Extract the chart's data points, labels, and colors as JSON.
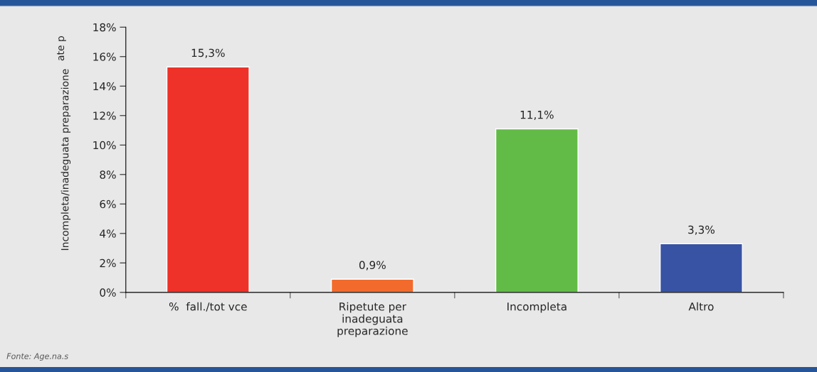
{
  "chart_data": {
    "type": "bar",
    "categories": [
      "%  fall./tot vce",
      "Ripetute per\ninadeguata\npreparazione",
      "Incompleta",
      "Altro"
    ],
    "values": [
      15.3,
      0.9,
      11.1,
      3.3
    ],
    "colors": [
      "#ee3129",
      "#f26b2c",
      "#62bb46",
      "#3853a4"
    ],
    "value_labels": [
      "15,3%",
      "0,9%",
      "11,1%",
      "3,3%"
    ],
    "ylabel": "Incompleta/inadeguata preparazione",
    "annotations": [
      "ate p",
      "Fonte: Age.na.s"
    ],
    "ylim": [
      0,
      18
    ],
    "yticks": [
      {
        "value": 0,
        "label": "0%"
      },
      {
        "value": 2,
        "label": "2%"
      },
      {
        "value": 4,
        "label": "4%"
      },
      {
        "value": 6,
        "label": "6%"
      },
      {
        "value": 8,
        "label": "8%"
      },
      {
        "value": 10,
        "label": "10%"
      },
      {
        "value": 12,
        "label": "12%"
      },
      {
        "value": 14,
        "label": "14%"
      },
      {
        "value": 16,
        "label": "16%"
      },
      {
        "value": 18,
        "label": "18%"
      }
    ],
    "grid": false,
    "legend": false
  }
}
